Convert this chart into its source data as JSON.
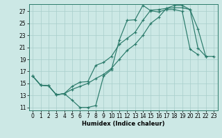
{
  "xlabel": "Humidex (Indice chaleur)",
  "xlim": [
    -0.5,
    23.5
  ],
  "ylim": [
    10.5,
    28.2
  ],
  "xticks": [
    0,
    1,
    2,
    3,
    4,
    5,
    6,
    7,
    8,
    9,
    10,
    11,
    12,
    13,
    14,
    15,
    16,
    17,
    18,
    19,
    20,
    21,
    22,
    23
  ],
  "yticks": [
    11,
    13,
    15,
    17,
    19,
    21,
    23,
    25,
    27
  ],
  "line_color": "#2a7a6a",
  "bg_color": "#cce8e5",
  "grid_color": "#a8ceca",
  "line1_x": [
    0,
    1,
    2,
    3,
    4,
    5,
    6,
    7,
    8,
    9,
    10,
    11,
    12,
    13,
    14,
    15,
    16,
    17,
    18,
    19,
    20,
    21
  ],
  "line1_y": [
    16.2,
    14.7,
    14.6,
    13.1,
    13.3,
    12.2,
    11.0,
    11.0,
    11.3,
    16.2,
    17.3,
    22.2,
    25.5,
    25.6,
    28.0,
    27.1,
    26.9,
    27.3,
    27.3,
    27.0,
    20.7,
    19.8
  ],
  "line2_x": [
    0,
    1,
    2,
    3,
    4,
    5,
    6,
    7,
    8,
    9,
    10,
    11,
    12,
    13,
    14,
    15,
    16,
    17,
    18,
    19,
    20,
    21,
    22
  ],
  "line2_y": [
    16.2,
    14.7,
    14.6,
    13.1,
    13.3,
    14.5,
    15.2,
    15.3,
    18.0,
    18.5,
    19.5,
    21.5,
    22.5,
    23.5,
    25.5,
    27.2,
    27.3,
    27.5,
    27.6,
    27.6,
    27.3,
    24.1,
    19.5
  ],
  "line3_x": [
    0,
    1,
    2,
    3,
    4,
    5,
    6,
    7,
    8,
    9,
    10,
    11,
    12,
    13,
    14,
    15,
    16,
    17,
    18,
    19,
    20,
    21,
    22,
    23
  ],
  "line3_y": [
    16.2,
    14.7,
    14.6,
    13.1,
    13.3,
    14.0,
    14.5,
    15.0,
    15.8,
    16.5,
    17.5,
    19.0,
    20.5,
    21.5,
    23.0,
    25.0,
    26.0,
    27.5,
    28.0,
    28.0,
    27.3,
    20.9,
    19.5,
    19.5
  ]
}
